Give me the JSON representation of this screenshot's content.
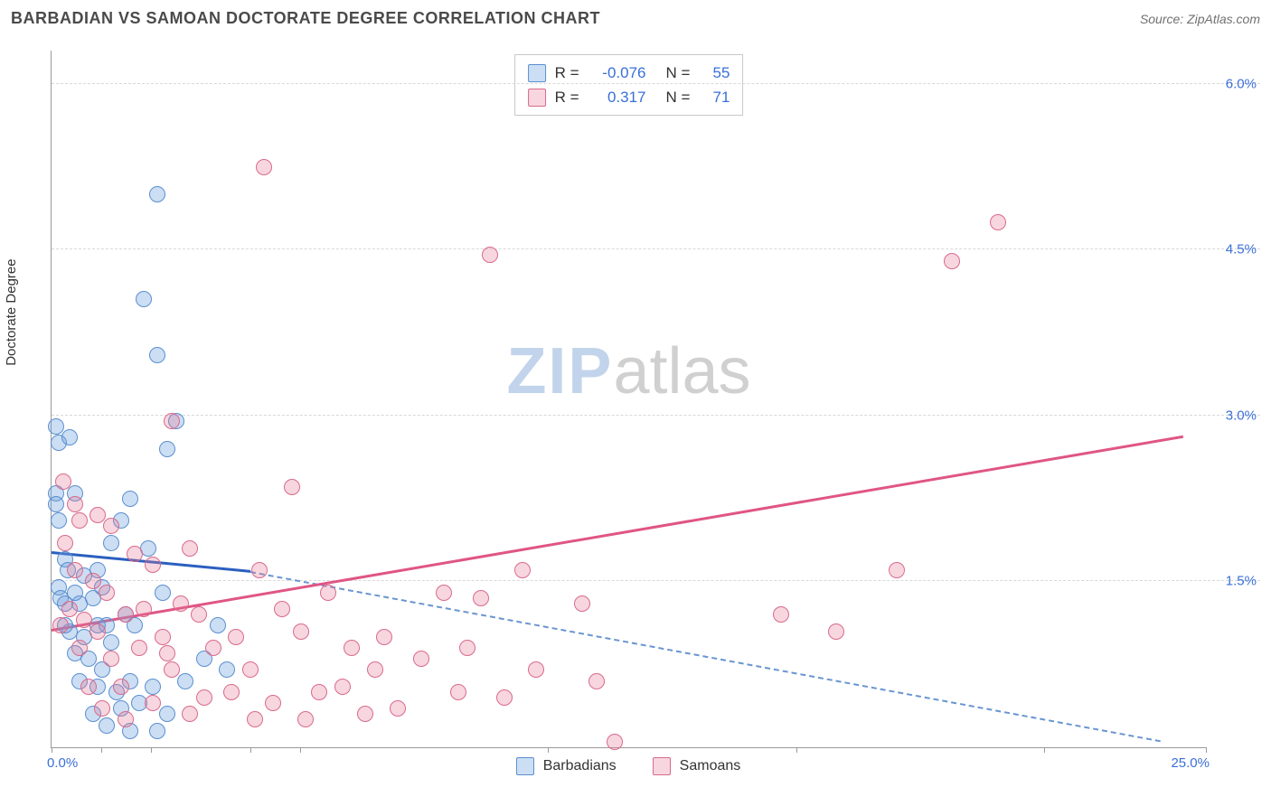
{
  "header": {
    "title": "BARBADIAN VS SAMOAN DOCTORATE DEGREE CORRELATION CHART",
    "source": "Source: ZipAtlas.com"
  },
  "ylabel": "Doctorate Degree",
  "watermark": {
    "part1": "ZIP",
    "part2": "atlas"
  },
  "chart": {
    "type": "scatter",
    "xlim": [
      0,
      25
    ],
    "ylim": [
      0,
      6.3
    ],
    "xaxis": {
      "min_label": "0.0%",
      "max_label": "25.0%",
      "tick_positions_pct": [
        0,
        4.3,
        8.6,
        17.2,
        21.5,
        43,
        64.5,
        86,
        100
      ]
    },
    "yaxis": {
      "grid": [
        {
          "value": 1.5,
          "label": "1.5%"
        },
        {
          "value": 3.0,
          "label": "3.0%"
        },
        {
          "value": 4.5,
          "label": "4.5%"
        },
        {
          "value": 6.0,
          "label": "6.0%"
        }
      ],
      "label_color": "#3a6fd8"
    },
    "background_color": "#ffffff",
    "grid_color": "#d8d8d8",
    "axis_color": "#9a9a9a",
    "marker_radius": 9,
    "series": [
      {
        "name": "Barbadians",
        "fill": "rgba(110,160,220,0.35)",
        "stroke": "#5a8fd0",
        "points": [
          [
            0.1,
            2.9
          ],
          [
            0.15,
            2.75
          ],
          [
            0.4,
            2.8
          ],
          [
            0.1,
            2.3
          ],
          [
            0.1,
            2.2
          ],
          [
            0.15,
            2.05
          ],
          [
            0.5,
            2.3
          ],
          [
            2.3,
            5.0
          ],
          [
            2.0,
            4.05
          ],
          [
            2.3,
            3.55
          ],
          [
            2.7,
            2.95
          ],
          [
            0.3,
            1.7
          ],
          [
            0.35,
            1.6
          ],
          [
            0.7,
            1.55
          ],
          [
            1.0,
            1.6
          ],
          [
            1.5,
            2.05
          ],
          [
            1.7,
            2.25
          ],
          [
            2.5,
            2.7
          ],
          [
            1.3,
            1.85
          ],
          [
            0.15,
            1.45
          ],
          [
            0.2,
            1.35
          ],
          [
            0.3,
            1.3
          ],
          [
            0.6,
            1.3
          ],
          [
            0.9,
            1.35
          ],
          [
            1.2,
            1.1
          ],
          [
            1.0,
            1.1
          ],
          [
            0.4,
            1.05
          ],
          [
            0.7,
            1.0
          ],
          [
            1.3,
            0.95
          ],
          [
            1.6,
            1.2
          ],
          [
            2.1,
            1.8
          ],
          [
            2.4,
            1.4
          ],
          [
            0.5,
            0.85
          ],
          [
            0.8,
            0.8
          ],
          [
            1.1,
            0.7
          ],
          [
            1.0,
            0.55
          ],
          [
            1.4,
            0.5
          ],
          [
            1.7,
            0.6
          ],
          [
            1.5,
            0.35
          ],
          [
            1.9,
            0.4
          ],
          [
            2.2,
            0.55
          ],
          [
            2.5,
            0.3
          ],
          [
            2.9,
            0.6
          ],
          [
            0.9,
            0.3
          ],
          [
            1.2,
            0.2
          ],
          [
            1.7,
            0.15
          ],
          [
            2.3,
            0.15
          ],
          [
            3.3,
            0.8
          ],
          [
            3.6,
            1.1
          ],
          [
            3.8,
            0.7
          ],
          [
            0.6,
            0.6
          ],
          [
            0.3,
            1.1
          ],
          [
            0.5,
            1.4
          ],
          [
            1.8,
            1.1
          ],
          [
            1.1,
            1.45
          ]
        ],
        "trend": {
          "start": [
            0,
            1.75
          ],
          "end_solid": [
            4.3,
            1.58
          ],
          "end_dash": [
            24,
            0.05
          ],
          "solid_color": "#2b5fc0",
          "dash_color": "#6a95d0",
          "solid_width": 3,
          "dash_width": 2
        }
      },
      {
        "name": "Samoans",
        "fill": "rgba(230,120,150,0.30)",
        "stroke": "#d96a8c",
        "points": [
          [
            4.6,
            5.25
          ],
          [
            9.5,
            4.45
          ],
          [
            19.5,
            4.4
          ],
          [
            20.5,
            4.75
          ],
          [
            2.6,
            2.95
          ],
          [
            5.2,
            2.35
          ],
          [
            0.5,
            2.2
          ],
          [
            0.6,
            2.05
          ],
          [
            1.0,
            2.1
          ],
          [
            1.3,
            2.0
          ],
          [
            1.8,
            1.75
          ],
          [
            2.2,
            1.65
          ],
          [
            3.0,
            1.8
          ],
          [
            4.5,
            1.6
          ],
          [
            5.0,
            1.25
          ],
          [
            5.4,
            1.05
          ],
          [
            6.0,
            1.4
          ],
          [
            6.5,
            0.9
          ],
          [
            7.0,
            0.7
          ],
          [
            8.5,
            1.4
          ],
          [
            9.3,
            1.35
          ],
          [
            10.2,
            1.6
          ],
          [
            11.5,
            1.3
          ],
          [
            11.8,
            0.6
          ],
          [
            10.5,
            0.7
          ],
          [
            9.8,
            0.45
          ],
          [
            8.8,
            0.5
          ],
          [
            7.5,
            0.35
          ],
          [
            6.8,
            0.3
          ],
          [
            5.8,
            0.5
          ],
          [
            4.8,
            0.4
          ],
          [
            4.3,
            0.7
          ],
          [
            3.9,
            0.5
          ],
          [
            3.5,
            0.9
          ],
          [
            3.3,
            0.45
          ],
          [
            3.0,
            0.3
          ],
          [
            2.6,
            0.7
          ],
          [
            2.4,
            1.0
          ],
          [
            2.8,
            1.3
          ],
          [
            2.2,
            0.4
          ],
          [
            1.9,
            0.9
          ],
          [
            1.6,
            1.2
          ],
          [
            1.3,
            0.8
          ],
          [
            1.0,
            1.05
          ],
          [
            0.7,
            1.15
          ],
          [
            0.4,
            1.25
          ],
          [
            0.8,
            0.55
          ],
          [
            1.5,
            0.55
          ],
          [
            12.2,
            0.05
          ],
          [
            15.8,
            1.2
          ],
          [
            18.3,
            1.6
          ],
          [
            17.0,
            1.05
          ],
          [
            0.3,
            1.85
          ],
          [
            0.5,
            1.6
          ],
          [
            0.9,
            1.5
          ],
          [
            1.2,
            1.4
          ],
          [
            1.6,
            0.25
          ],
          [
            2.0,
            1.25
          ],
          [
            2.5,
            0.85
          ],
          [
            3.2,
            1.2
          ],
          [
            4.0,
            1.0
          ],
          [
            4.4,
            0.25
          ],
          [
            5.5,
            0.25
          ],
          [
            6.3,
            0.55
          ],
          [
            7.2,
            1.0
          ],
          [
            8.0,
            0.8
          ],
          [
            9.0,
            0.9
          ],
          [
            0.25,
            2.4
          ],
          [
            0.2,
            1.1
          ],
          [
            0.6,
            0.9
          ],
          [
            1.1,
            0.35
          ]
        ],
        "trend": {
          "start": [
            0,
            1.05
          ],
          "end": [
            24.5,
            2.8
          ],
          "color": "#e05585",
          "width": 3
        }
      }
    ],
    "info_box": {
      "rows": [
        {
          "swatch_fill": "rgba(110,160,220,0.35)",
          "swatch_stroke": "#5a8fd0",
          "r_label": "R =",
          "r_value": "-0.076",
          "n_label": "N =",
          "n_value": "55"
        },
        {
          "swatch_fill": "rgba(230,120,150,0.30)",
          "swatch_stroke": "#d96a8c",
          "r_label": "R =",
          "r_value": "0.317",
          "n_label": "N =",
          "n_value": "71"
        }
      ]
    },
    "bottom_legend": [
      {
        "label": "Barbadians",
        "fill": "rgba(110,160,220,0.35)",
        "stroke": "#5a8fd0"
      },
      {
        "label": "Samoans",
        "fill": "rgba(230,120,150,0.30)",
        "stroke": "#d96a8c"
      }
    ]
  }
}
